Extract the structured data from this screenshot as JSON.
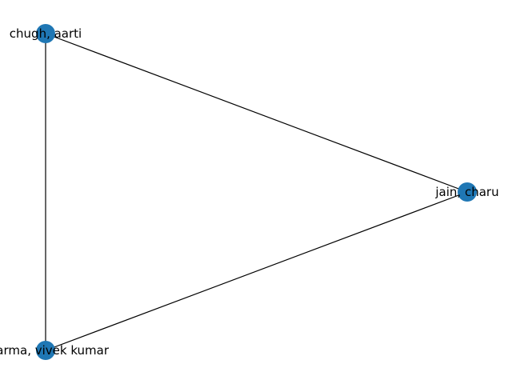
{
  "graph": {
    "node_color": "#1f77b4",
    "edge_color": "#000000",
    "nodes": [
      {
        "id": "chugh",
        "label": "chugh, aarti"
      },
      {
        "id": "jain",
        "label": "jain, charu"
      },
      {
        "id": "sharma",
        "label": "sharma, vivek kumar"
      }
    ],
    "edges": [
      {
        "source": "chugh",
        "target": "jain"
      },
      {
        "source": "chugh",
        "target": "sharma"
      },
      {
        "source": "jain",
        "target": "sharma"
      }
    ]
  }
}
